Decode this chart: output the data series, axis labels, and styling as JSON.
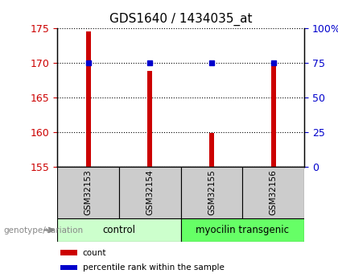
{
  "title": "GDS1640 / 1434035_at",
  "samples": [
    "GSM32153",
    "GSM32154",
    "GSM32155",
    "GSM32156"
  ],
  "bar_values": [
    174.5,
    168.8,
    159.9,
    170.2
  ],
  "percentile_values": [
    75,
    75,
    75,
    75
  ],
  "bar_color": "#cc0000",
  "dot_color": "#0000cc",
  "ylim_left": [
    155,
    175
  ],
  "ylim_right": [
    0,
    100
  ],
  "yticks_left": [
    155,
    160,
    165,
    170,
    175
  ],
  "yticks_right": [
    0,
    25,
    50,
    75,
    100
  ],
  "ytick_labels_right": [
    "0",
    "25",
    "50",
    "75",
    "100%"
  ],
  "groups": [
    {
      "label": "control",
      "samples": [
        0,
        1
      ],
      "color": "#ccffcc"
    },
    {
      "label": "myocilin transgenic",
      "samples": [
        2,
        3
      ],
      "color": "#66ff66"
    }
  ],
  "genotype_label": "genotype/variation",
  "legend_items": [
    {
      "label": "count",
      "color": "#cc0000"
    },
    {
      "label": "percentile rank within the sample",
      "color": "#0000cc"
    }
  ],
  "plot_bg": "#ffffff",
  "label_panel_bg": "#cccccc",
  "bar_width": 0.08
}
